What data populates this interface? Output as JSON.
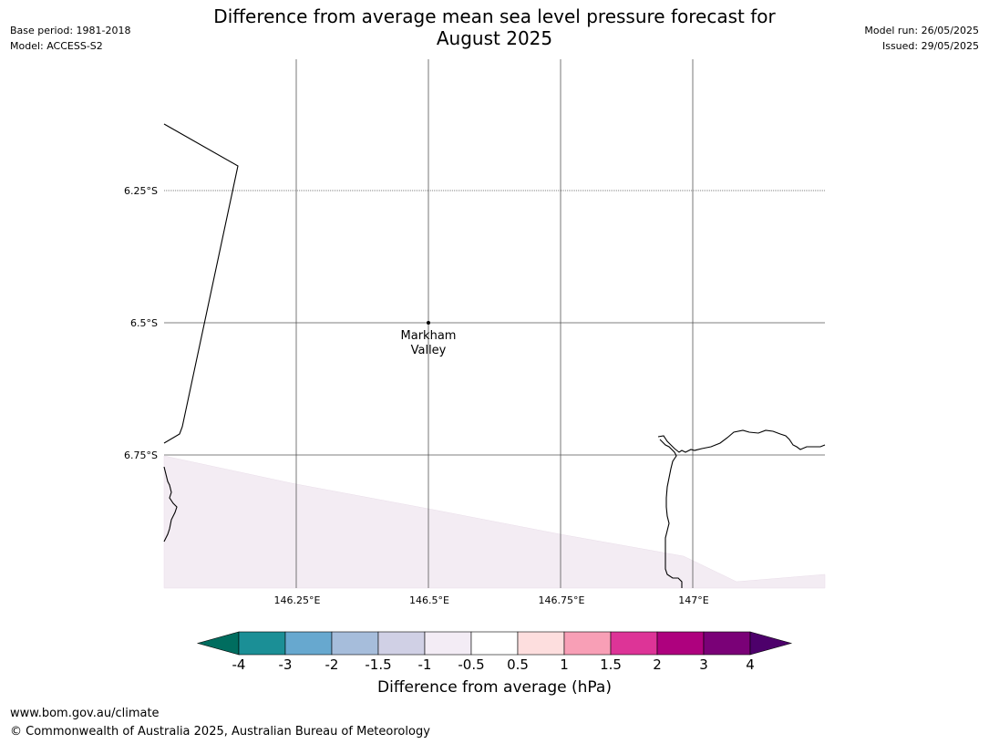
{
  "header": {
    "title_line1": "Difference from average mean sea level pressure forecast for",
    "title_line2": "August 2025",
    "base_period": "Base period: 1981-2018",
    "model": "Model: ACCESS-S2",
    "model_run": "Model run: 26/05/2025",
    "issued": "Issued: 29/05/2025"
  },
  "map": {
    "lat_labels": [
      "6.25°S",
      "6.5°S",
      "6.75°S"
    ],
    "lon_labels": [
      "146.25°E",
      "146.5°E",
      "146.75°E",
      "147°E"
    ],
    "site": {
      "name_line1": "Markham",
      "name_line2": "Valley"
    },
    "fill_color": "#f3ecf3",
    "fill_category": "-1 to -0.5"
  },
  "colorbar": {
    "ticks": [
      "-4",
      "-3",
      "-2",
      "-1.5",
      "-1",
      "-0.5",
      "0.5",
      "1",
      "1.5",
      "2",
      "3",
      "4"
    ],
    "colors": [
      "#006d5f",
      "#1b8f96",
      "#67a8cf",
      "#a6bddb",
      "#d0d0e5",
      "#f3ecf5",
      "#ffffff",
      "#fddede",
      "#f89fb6",
      "#dd3497",
      "#ae017e",
      "#7a0177",
      "#4d006b"
    ],
    "label": "Difference from average (hPa)"
  },
  "footer": {
    "website": "www.bom.gov.au/climate",
    "copyright": "© Commonwealth of Australia 2025, Australian Bureau of Meteorology"
  }
}
